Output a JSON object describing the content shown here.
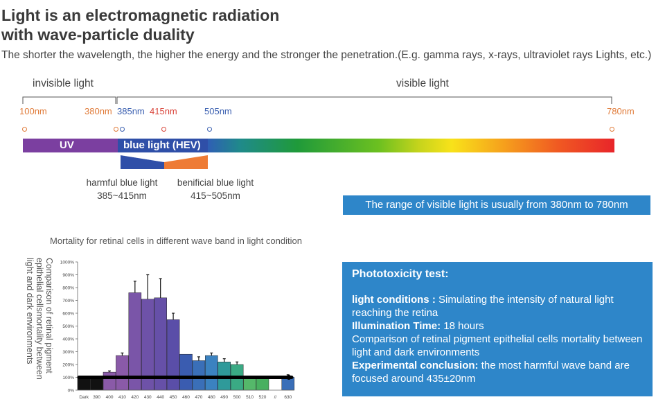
{
  "heading": {
    "title_line1": "Light is an electromagnetic radiation",
    "title_line2": "with wave-particle duality",
    "subtitle": "The shorter the wavelength, the higher the energy and the stronger the penetration.(E.g. gamma rays, x-rays, ultraviolet rays Lights, etc.)"
  },
  "spectrum": {
    "invisible_label": "invisible light",
    "visible_label": "visible light",
    "markers": [
      {
        "label": "100nm",
        "color": "#e07b39"
      },
      {
        "label": "380nm",
        "color": "#e07b39"
      },
      {
        "label": "385nm",
        "color": "#3a5fb0"
      },
      {
        "label": "415nm",
        "color": "#d9443a"
      },
      {
        "label": "505nm",
        "color": "#3a5fb0"
      },
      {
        "label": "780nm",
        "color": "#e07b39"
      }
    ],
    "uv_label": "UV",
    "hev_label": "blue light (HEV)",
    "harmful_label": "harmful blue light",
    "harmful_range": "385~415nm",
    "beneficial_label": "benificial blue light",
    "beneficial_range": "415~505nm",
    "range_note": "The range of visible light is usually from 380nm to 780nm",
    "colors": {
      "uv": "#7b3fa0",
      "hev": "#2f4fa8",
      "harmful": "#2f4fa8",
      "beneficial": "#ee7b35",
      "note_bg": "#2e86c9"
    }
  },
  "chart_data": {
    "type": "bar",
    "title": "Mortality for retinal cells in different wave band in light condition",
    "ylabel": "Comparison of retinal pigment epithelial cellsmortality between light and dark environments",
    "categories": [
      "Dark",
      "390",
      "400",
      "410",
      "420",
      "430",
      "440",
      "450",
      "460",
      "470",
      "480",
      "490",
      "500",
      "510",
      "520",
      "//",
      "630"
    ],
    "values": [
      100,
      100,
      140,
      270,
      760,
      710,
      720,
      550,
      280,
      230,
      270,
      220,
      200,
      110,
      90,
      null,
      100
    ],
    "errors": [
      0,
      0,
      10,
      20,
      90,
      190,
      150,
      50,
      0,
      30,
      20,
      25,
      20,
      0,
      0,
      null,
      20
    ],
    "ylim": [
      0,
      1000
    ],
    "yticks": [
      "0%",
      "100%",
      "200%",
      "300%",
      "400%",
      "500%",
      "600%",
      "700%",
      "800%",
      "900%",
      "1000%"
    ],
    "baseline_value": 100,
    "bar_colors": [
      "#111111",
      "#111111",
      "#8a5aa8",
      "#8a5aa8",
      "#7a55a8",
      "#6e52a8",
      "#6650a8",
      "#5a4ea8",
      "#3a5cb0",
      "#3a6fb8",
      "#3b82c0",
      "#2f9a9a",
      "#3aaa84",
      "#55b86a",
      "#48b060",
      null,
      "#3a6fb8"
    ]
  },
  "phototoxicity": {
    "heading": "Phototoxicity test:",
    "light_conditions_label": "light conditions :",
    "light_conditions_text": " Simulating the intensity of natural light reaching the retina",
    "illumination_label": "Illumination Time:",
    "illumination_text": " 18 hours",
    "comparison_text": "Comparison of retinal pigment epithelial cells mortality between light and dark environments",
    "conclusion_label": "Experimental conclusion:",
    "conclusion_text": "  the most harmful wave band are focused around 435±20nm"
  }
}
